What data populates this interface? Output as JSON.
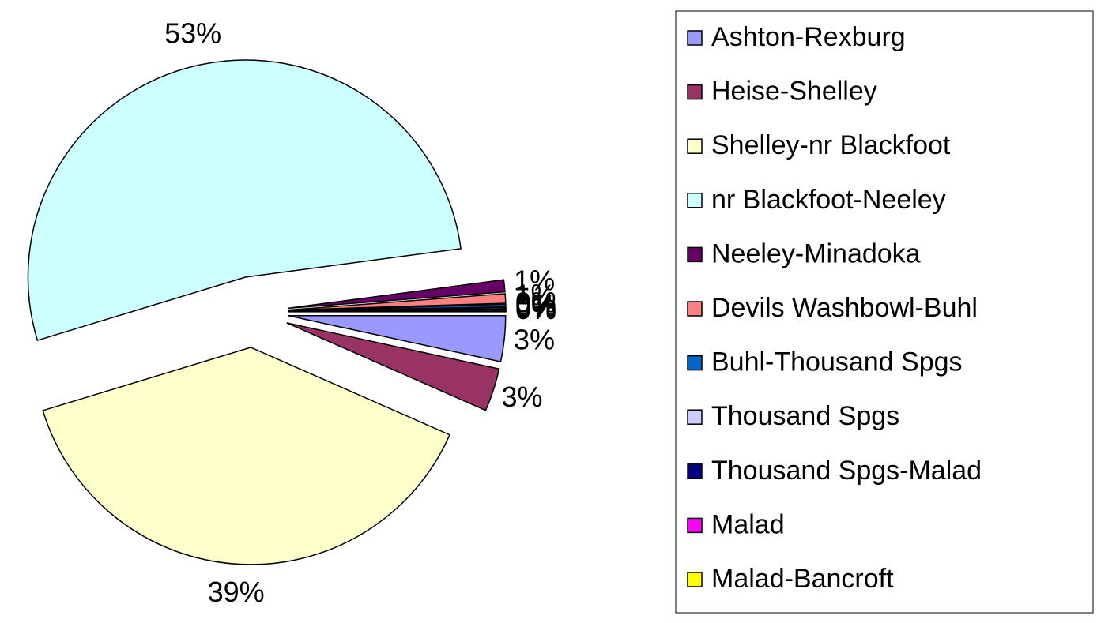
{
  "chart_data": {
    "type": "pie",
    "categories": [
      "Ashton-Rexburg",
      "Heise-Shelley",
      "Shelley-nr Blackfoot",
      "nr Blackfoot-Neeley",
      "Neeley-Minadoka",
      "Devils Washbowl-Buhl",
      "Buhl-Thousand Spgs",
      "Thousand Spgs",
      "Thousand Spgs-Malad",
      "Malad",
      "Malad-Bancroft"
    ],
    "values": [
      3.4,
      3.2,
      38.7,
      52.6,
      0.9,
      0.7,
      0.2,
      0.1,
      0.05,
      0.1,
      0.05
    ],
    "value_labels": [
      "3%",
      "3%",
      "39%",
      "53%",
      "1%",
      "1%",
      "0%",
      "0%",
      "0%",
      "0%",
      "0%"
    ],
    "colors": [
      "#9999ff",
      "#993366",
      "#ffffcc",
      "#ccffff",
      "#660066",
      "#ff8080",
      "#0066cc",
      "#ccccff",
      "#000080",
      "#ff00ff",
      "#ffff00"
    ],
    "legend": "right"
  }
}
